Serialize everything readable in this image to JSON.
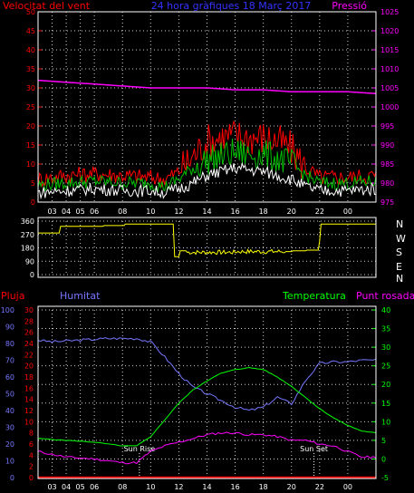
{
  "colors": {
    "background": "#000000",
    "frame": "#ffffff",
    "grid": "#cfcfcf",
    "wind_speed": "#ff0000",
    "wind_gust": "#00c000",
    "wind_avg": "#ffffff",
    "pressure": "#ff00ff",
    "direction": "#ffff00",
    "rain": "#ff0000",
    "humidity": "#7777ff",
    "temperature": "#00ff00",
    "dew_point": "#ff00ff",
    "sun_marker": "#ffffff",
    "title": "#3333ff",
    "tick_red": "#ff0000",
    "tick_blue": "#7777ff",
    "tick_green": "#00ff00",
    "tick_magenta": "#ff00ff",
    "tick_white": "#ffffff"
  },
  "chart_data": [
    {
      "type": "line",
      "title": "24 hora gràfiques 18 Març 2017",
      "y_left_label": "Velocitat del vent",
      "y_right_label": "Pressió",
      "x_ticks": [
        "03",
        "04",
        "05",
        "06",
        "08",
        "10",
        "12",
        "14",
        "16",
        "18",
        "20",
        "22",
        "00"
      ],
      "y_left_range": [
        0,
        50
      ],
      "y_left_ticks": [
        "0",
        "5",
        "10",
        "15",
        "20",
        "25",
        "30",
        "35",
        "40",
        "45",
        "50"
      ],
      "y_right_range": [
        975,
        1025
      ],
      "y_right_ticks": [
        "975",
        "980",
        "985",
        "990",
        "995",
        "1000",
        "1005",
        "1010",
        "1015",
        "1020",
        "1025"
      ],
      "grid": true,
      "series": [
        {
          "name": "Pressió",
          "axis": "right",
          "hours": [
            0,
            2,
            4,
            6,
            8,
            10,
            12,
            14,
            16,
            18,
            20,
            22,
            24
          ],
          "values": [
            1007,
            1006.5,
            1006,
            1005.5,
            1005,
            1005,
            1005,
            1004.5,
            1004.5,
            1004,
            1004,
            1004,
            1003.5
          ]
        },
        {
          "hours": [
            0,
            2,
            4,
            6,
            8,
            9,
            10,
            11,
            12,
            13,
            14,
            15,
            16,
            17,
            18,
            19,
            20,
            22,
            24
          ],
          "values": [
            6,
            7,
            7.5,
            7,
            6.5,
            6,
            8,
            12,
            16,
            17,
            17.5,
            17,
            17,
            16,
            14,
            9,
            6.5,
            6.5,
            7
          ]
        },
        {
          "hours": [
            0,
            2,
            4,
            6,
            8,
            9,
            10,
            11,
            12,
            13,
            14,
            15,
            16,
            17,
            18,
            19,
            20,
            22,
            24
          ],
          "values": [
            4.5,
            5,
            5.5,
            5,
            5,
            4,
            6,
            9,
            11,
            12,
            13,
            12.5,
            12.5,
            11.5,
            10,
            7,
            5,
            5,
            5.5
          ]
        },
        {
          "hours": [
            0,
            2,
            4,
            6,
            8,
            9,
            10,
            11,
            12,
            13,
            14,
            15,
            16,
            17,
            18,
            19,
            20,
            22,
            24
          ],
          "values": [
            2.5,
            3,
            3.5,
            3,
            3,
            2.5,
            3.5,
            5,
            7,
            8,
            9,
            8.5,
            8,
            7,
            6,
            4,
            3,
            3,
            3.5
          ]
        }
      ]
    },
    {
      "type": "line",
      "y_range": [
        0,
        360
      ],
      "y_ticks": [
        "0",
        "90",
        "180",
        "270",
        "360"
      ],
      "y_right_labels": [
        "N",
        "W",
        "S",
        "E",
        "N"
      ],
      "series": [
        {
          "hours": [
            0,
            1.5,
            1.6,
            4.5,
            4.6,
            6,
            6.1,
            9.5,
            9.6,
            10,
            10.5,
            14,
            18,
            19,
            20,
            20.1,
            24
          ],
          "values": [
            280,
            280,
            325,
            325,
            330,
            330,
            340,
            340,
            120,
            160,
            150,
            155,
            160,
            165,
            225,
            340,
            340
          ]
        }
      ]
    },
    {
      "type": "line",
      "y_rain_label": "Pluja",
      "y_humidity_label": "Humitat",
      "y_temp_label": "Temperatura",
      "y_dew_label": "Punt rosada",
      "y_rain_range": [
        0,
        30
      ],
      "y_rain_ticks": [
        "0",
        "2",
        "4",
        "6",
        "8",
        "10",
        "12",
        "14",
        "16",
        "18",
        "20",
        "22",
        "24",
        "26",
        "28",
        "30"
      ],
      "y_humidity_range": [
        0,
        100
      ],
      "y_humidity_ticks": [
        "0",
        "10",
        "20",
        "30",
        "40",
        "50",
        "60",
        "70",
        "80",
        "90",
        "100"
      ],
      "y_temp_range": [
        -5,
        40
      ],
      "y_temp_ticks": [
        "-5",
        "0",
        "5",
        "10",
        "15",
        "20",
        "25",
        "30",
        "35",
        "40"
      ],
      "markers": [
        {
          "label": "Sun Rise",
          "hour": 7.2
        },
        {
          "label": "Sun Set",
          "hour": 19.6
        }
      ],
      "grid": true,
      "series": [
        {
          "axis": "humidity",
          "hours": [
            0,
            1,
            3,
            5,
            7,
            8,
            9,
            10,
            11,
            12,
            13,
            14,
            15,
            16,
            17,
            18,
            19,
            20,
            21,
            22,
            23,
            24
          ],
          "values": [
            82,
            81,
            82,
            83,
            83,
            81,
            72,
            62,
            54,
            50,
            46,
            42,
            40,
            42,
            48,
            44,
            58,
            68,
            69,
            69,
            70,
            70
          ]
        },
        {
          "axis": "temp",
          "hours": [
            0,
            2,
            4,
            6,
            7,
            8,
            9,
            10,
            11,
            12,
            13,
            14,
            15,
            16,
            17,
            18,
            19,
            20,
            21,
            22,
            23,
            24
          ],
          "values": [
            5.5,
            5,
            4.5,
            3.5,
            3.5,
            6,
            10.5,
            15,
            18.5,
            21,
            23,
            24,
            24.5,
            24,
            22,
            19.5,
            16.5,
            13.5,
            11,
            9,
            7.5,
            7
          ]
        },
        {
          "axis": "temp",
          "hours": [
            0,
            2,
            4,
            6,
            7,
            8,
            9,
            10,
            11,
            12,
            13,
            14,
            15,
            16,
            17,
            18,
            19,
            20,
            21,
            22,
            23,
            24
          ],
          "values": [
            2,
            0.5,
            0,
            -1,
            -1,
            2,
            3.5,
            4.5,
            5.5,
            6.5,
            7,
            7,
            6.5,
            6.5,
            6,
            5,
            5,
            4,
            3.5,
            2,
            0.5,
            0.5
          ]
        },
        {
          "axis": "rain",
          "hours": [
            0,
            24
          ],
          "values": [
            0,
            0
          ]
        }
      ]
    }
  ]
}
